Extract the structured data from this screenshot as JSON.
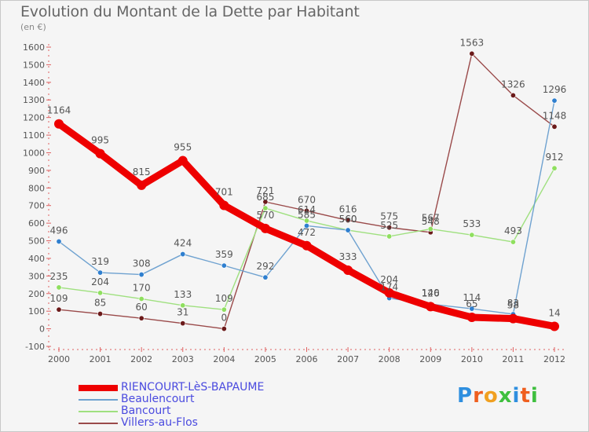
{
  "title": "Evolution du Montant de la Dette par Habitant",
  "subtitle": "(en €)",
  "logo_text": "Proxiti",
  "chart_data": {
    "type": "line",
    "x": [
      2000,
      2001,
      2002,
      2003,
      2004,
      2005,
      2006,
      2007,
      2008,
      2009,
      2010,
      2011,
      2012
    ],
    "ylim": [
      -100,
      1600
    ],
    "yticks": [
      -100,
      0,
      100,
      200,
      300,
      400,
      500,
      600,
      700,
      800,
      900,
      1000,
      1100,
      1200,
      1300,
      1400,
      1500,
      1600
    ],
    "grid": false,
    "legend_position": "bottom-left",
    "series": [
      {
        "name": "RIENCOURT-LèS-BAPAUME",
        "color": "#ee0000",
        "marker": "#ee0000",
        "values": [
          1164,
          995,
          815,
          955,
          701,
          570,
          472,
          333,
          204,
          126,
          65,
          58,
          14
        ]
      },
      {
        "name": "Beaulencourt",
        "color": "#6fa2d0",
        "marker": "#2f7fcf",
        "values": [
          496,
          319,
          308,
          424,
          359,
          292,
          585,
          560,
          174,
          140,
          114,
          83,
          1296
        ]
      },
      {
        "name": "Bancourt",
        "color": "#9fe07f",
        "marker": "#8fdf5f",
        "values": [
          235,
          204,
          170,
          133,
          109,
          685,
          614,
          560,
          525,
          567,
          533,
          493,
          912
        ]
      },
      {
        "name": "Villers-au-Flos",
        "color": "#9a4a4a",
        "marker": "#6b1a1a",
        "values": [
          109,
          85,
          60,
          31,
          0,
          721,
          670,
          616,
          575,
          548,
          1563,
          1326,
          1148
        ]
      }
    ]
  }
}
